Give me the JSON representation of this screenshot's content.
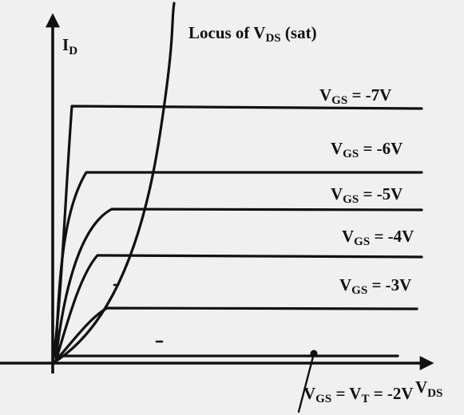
{
  "axes": {
    "y_label_main": "I",
    "y_label_sub": "D",
    "x_label_main": "V",
    "x_label_sub": "DS"
  },
  "locus": {
    "label_main": "Locus of V",
    "label_sub": "DS",
    "label_tail": " (sat)"
  },
  "curves": [
    {
      "vgs": "-7V",
      "label_sub": "GS",
      "label_tail": " = -7V"
    },
    {
      "vgs": "-6V",
      "label_sub": "GS",
      "label_tail": " = -6V"
    },
    {
      "vgs": "-5V",
      "label_sub": "GS",
      "label_tail": " = -5V"
    },
    {
      "vgs": "-4V",
      "label_sub": "GS",
      "label_tail": " = -4V"
    },
    {
      "vgs": "-3V",
      "label_sub": "GS",
      "label_tail": " = -3V"
    }
  ],
  "threshold": {
    "part1_main": "V",
    "part1_sub": "GS",
    "part2_main": " = V",
    "part2_sub": "T",
    "part3": " = -2V"
  },
  "colors": {
    "ink": "#111111",
    "background": "#f0f0f0"
  }
}
